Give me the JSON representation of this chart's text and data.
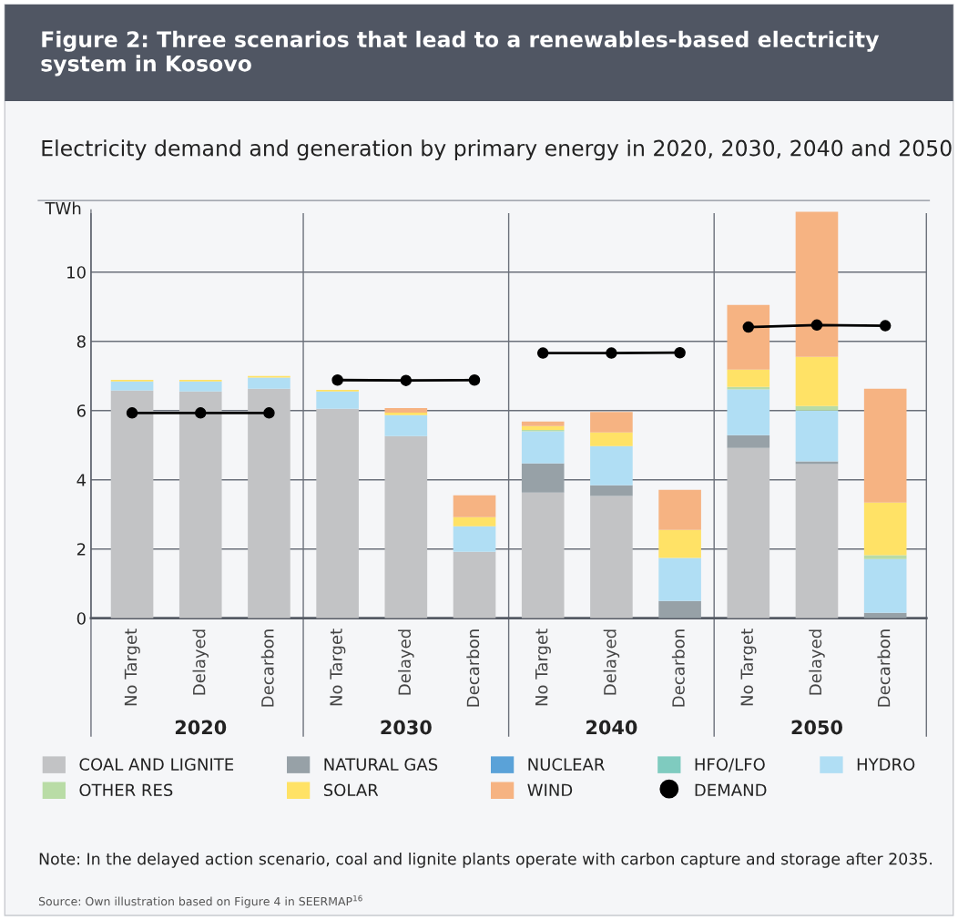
{
  "chart_data": {
    "type": "bar",
    "stacked": true,
    "title": "Figure 2: Three scenarios that lead to a renewables-based electricity system in Kosovo",
    "subtitle": "Electricity demand and generation by primary energy in 2020, 2030, 2040 and 2050",
    "ylabel": "TWh",
    "categories": [
      "No Target",
      "Delayed",
      "Decarbon",
      "No Target",
      "Delayed",
      "Decarbon",
      "No Target",
      "Delayed",
      "Decarbon",
      "No Target",
      "Delayed",
      "Decarbon"
    ],
    "series": [
      {
        "name": "COAL AND LIGNITE",
        "color": "#c2c3c5",
        "values": [
          6.58,
          6.55,
          6.63,
          6.05,
          5.26,
          1.92,
          3.63,
          3.53,
          0,
          4.92,
          4.45,
          0
        ]
      },
      {
        "name": "NATURAL GAS",
        "color": "#97a1a7",
        "values": [
          0,
          0,
          0,
          0,
          0,
          0,
          0.84,
          0.31,
          0.5,
          0.37,
          0.08,
          0.16
        ]
      },
      {
        "name": "NUCLEAR",
        "color": "#5aa2d8",
        "values": [
          0,
          0,
          0,
          0,
          0,
          0,
          0,
          0,
          0,
          0,
          0,
          0
        ]
      },
      {
        "name": "HFO/LFO",
        "color": "#7fcbbf",
        "values": [
          0,
          0,
          0,
          0,
          0,
          0,
          0,
          0,
          0,
          0,
          0,
          0
        ]
      },
      {
        "name": "HYDRO",
        "color": "#b0def4",
        "values": [
          0.26,
          0.29,
          0.32,
          0.5,
          0.61,
          0.74,
          0.93,
          1.13,
          1.24,
          1.32,
          1.47,
          1.55
        ]
      },
      {
        "name": "OTHER RES",
        "color": "#b9dca6",
        "values": [
          0,
          0,
          0,
          0,
          null,
          0,
          0.04,
          null,
          0,
          0.07,
          0.13,
          0.11
        ]
      },
      {
        "name": "SOLAR",
        "color": "#ffe266",
        "values": [
          0.05,
          0.05,
          0.05,
          0.05,
          0.07,
          0.26,
          0.11,
          0.4,
          0.81,
          0.5,
          1.42,
          1.52
        ]
      },
      {
        "name": "WIND",
        "color": "#f6b382",
        "values": [
          0,
          0,
          0,
          0,
          0.13,
          0.63,
          0.13,
          0.59,
          1.16,
          1.87,
          4.19,
          3.29
        ]
      },
      {
        "name": "DEMAND",
        "color": "#000000",
        "type": "line",
        "marker": "circle",
        "values": [
          5.93,
          5.93,
          5.93,
          6.88,
          6.87,
          6.88,
          7.66,
          7.66,
          7.67,
          8.41,
          8.47,
          8.45
        ]
      }
    ],
    "ylim": [
      0,
      11.8
    ],
    "yticks": [
      0,
      2,
      4,
      6,
      8,
      10
    ],
    "grid": "y",
    "legend": "bottom",
    "annotations": [
      "2020",
      "2030",
      "2040",
      "2050",
      "Note: In the delayed action scenario, coal and lignite plants operate with carbon capture and storage after 2035.",
      "Source: Own illustration based on Figure 4 in SEERMAP$^{16}$"
    ]
  }
}
